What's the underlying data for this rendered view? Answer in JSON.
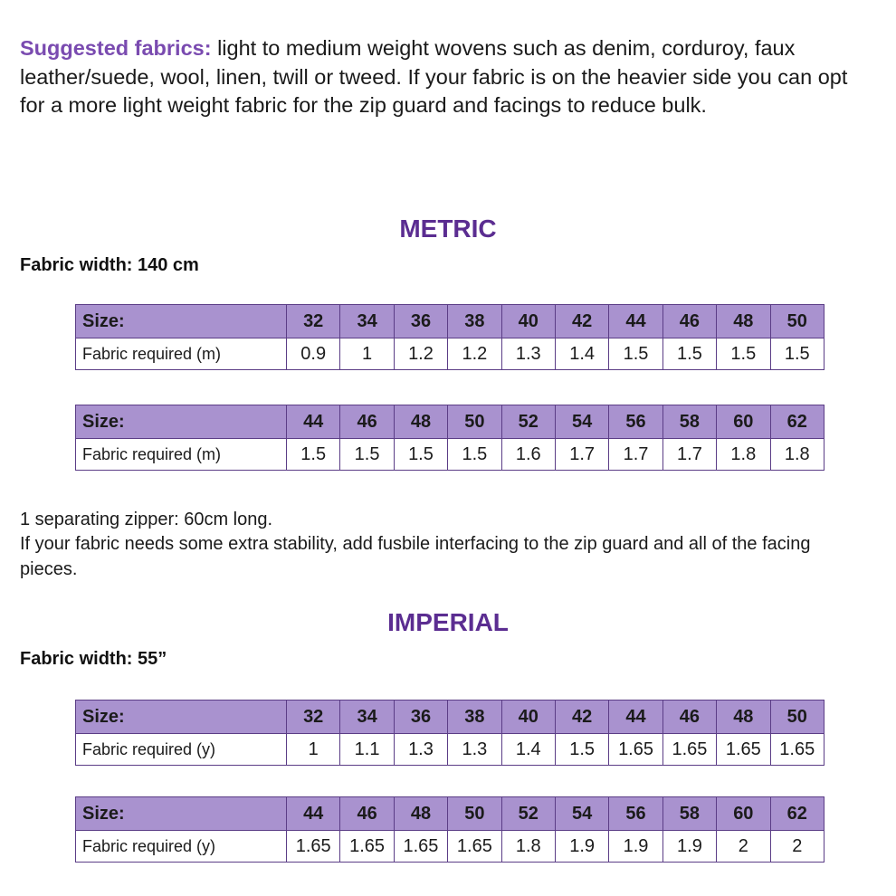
{
  "intro": {
    "lead": "Suggested fabrics:",
    "text": " light to medium weight wovens such as denim, corduroy, faux leather/suede, wool, linen, twill or tweed. If your fabric is on the heavier side you can opt for a more light weight fabric for the zip guard and facings to reduce bulk."
  },
  "metric": {
    "heading": "METRIC",
    "width_label": "Fabric width: 140 cm",
    "row_label": "Size:",
    "req_label": "Fabric required (m)",
    "tables": [
      {
        "sizes": [
          "32",
          "34",
          "36",
          "38",
          "40",
          "42",
          "44",
          "46",
          "48",
          "50"
        ],
        "values": [
          "0.9",
          "1",
          "1.2",
          "1.2",
          "1.3",
          "1.4",
          "1.5",
          "1.5",
          "1.5",
          "1.5"
        ]
      },
      {
        "sizes": [
          "44",
          "46",
          "48",
          "50",
          "52",
          "54",
          "56",
          "58",
          "60",
          "62"
        ],
        "values": [
          "1.5",
          "1.5",
          "1.5",
          "1.5",
          "1.6",
          "1.7",
          "1.7",
          "1.7",
          "1.8",
          "1.8"
        ]
      }
    ]
  },
  "notes": {
    "line1": "1 separating zipper: 60cm long.",
    "line2": "If your fabric needs some extra stability, add fusbile interfacing to the zip guard and all of the facing pieces."
  },
  "imperial": {
    "heading": "IMPERIAL",
    "width_label": "Fabric width: 55”",
    "row_label": "Size:",
    "req_label": "Fabric required (y)",
    "tables": [
      {
        "sizes": [
          "32",
          "34",
          "36",
          "38",
          "40",
          "42",
          "44",
          "46",
          "48",
          "50"
        ],
        "values": [
          "1",
          "1.1",
          "1.3",
          "1.3",
          "1.4",
          "1.5",
          "1.65",
          "1.65",
          "1.65",
          "1.65"
        ]
      },
      {
        "sizes": [
          "44",
          "46",
          "48",
          "50",
          "52",
          "54",
          "56",
          "58",
          "60",
          "62"
        ],
        "values": [
          "1.65",
          "1.65",
          "1.65",
          "1.65",
          "1.8",
          "1.9",
          "1.9",
          "1.9",
          "2",
          "2"
        ]
      }
    ]
  }
}
